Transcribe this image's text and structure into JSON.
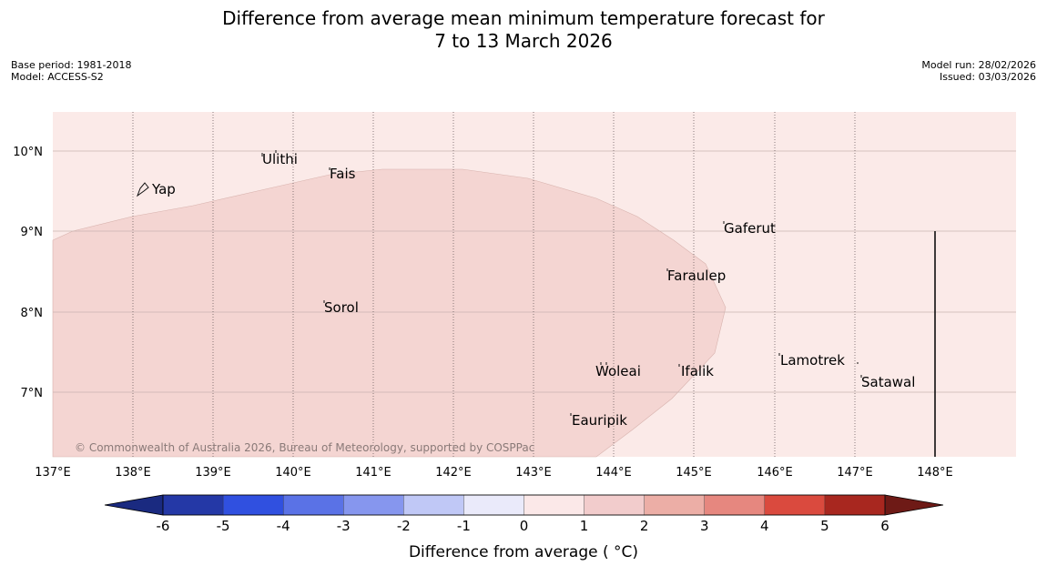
{
  "header": {
    "title_line1": "Difference from average mean minimum temperature forecast for",
    "title_line2": "7 to 13 March 2026",
    "base_period": "Base period: 1981-2018",
    "model": "Model: ACCESS-S2",
    "model_run": "Model run: 28/02/2026",
    "issued": "Issued: 03/03/2026"
  },
  "map": {
    "lon_labels": [
      "137°E",
      "138°E",
      "139°E",
      "140°E",
      "141°E",
      "142°E",
      "143°E",
      "144°E",
      "145°E",
      "146°E",
      "147°E",
      "148°E"
    ],
    "lat_labels": [
      "10°N",
      "9°N",
      "8°N",
      "7°N"
    ],
    "places": [
      {
        "name": "Yap"
      },
      {
        "name": "Ulithi"
      },
      {
        "name": "Fais"
      },
      {
        "name": "Gaferut"
      },
      {
        "name": "Faraulep"
      },
      {
        "name": "Sorol"
      },
      {
        "name": "Woleai"
      },
      {
        "name": "Ifalik"
      },
      {
        "name": "Lamotrek"
      },
      {
        "name": "Satawal"
      },
      {
        "name": "Eauripik"
      }
    ],
    "background_band": "0 to 1",
    "anomaly_region_band": "1 to 2",
    "copyright": "© Commonwealth of Australia 2026, Bureau of Meteorology, supported by COSPPac"
  },
  "colorbar": {
    "ticks": [
      "-6",
      "-5",
      "-4",
      "-3",
      "-2",
      "-1",
      "0",
      "1",
      "2",
      "3",
      "4",
      "5",
      "6"
    ],
    "colors": [
      "#2438a6",
      "#3050e0",
      "#5a72e6",
      "#8696ee",
      "#c0c8f6",
      "#eaeafa",
      "#fbe8e8",
      "#f2cccc",
      "#ecaea6",
      "#e6877f",
      "#da4a3e",
      "#a8271f"
    ],
    "low_extend_color": "#1a2a80",
    "high_extend_color": "#6e1a16",
    "title": "Difference from average ( °C)"
  }
}
